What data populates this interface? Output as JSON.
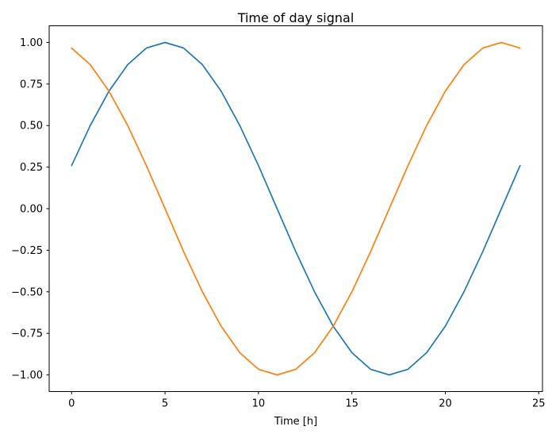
{
  "chart_data": {
    "type": "line",
    "title": "Time of day signal",
    "xlabel": "Time [h]",
    "ylabel": "",
    "x": [
      0,
      1,
      2,
      3,
      4,
      5,
      6,
      7,
      8,
      9,
      10,
      11,
      12,
      13,
      14,
      15,
      16,
      17,
      18,
      19,
      20,
      21,
      22,
      23,
      24
    ],
    "series": [
      {
        "color": "#1f77b4",
        "values": [
          0.259,
          0.5,
          0.707,
          0.866,
          0.966,
          1.0,
          0.966,
          0.866,
          0.707,
          0.5,
          0.259,
          0.0,
          -0.259,
          -0.5,
          -0.707,
          -0.866,
          -0.966,
          -1.0,
          -0.966,
          -0.866,
          -0.707,
          -0.5,
          -0.259,
          0.0,
          0.259
        ]
      },
      {
        "color": "#ff7f0e",
        "values": [
          0.966,
          0.866,
          0.707,
          0.5,
          0.259,
          0.0,
          -0.259,
          -0.5,
          -0.707,
          -0.866,
          -0.966,
          -1.0,
          -0.966,
          -0.866,
          -0.707,
          -0.5,
          -0.259,
          0.0,
          0.259,
          0.5,
          0.707,
          0.866,
          0.966,
          1.0,
          0.966
        ]
      }
    ],
    "xlim": [
      -1.2,
      25.2
    ],
    "ylim": [
      -1.1,
      1.1
    ],
    "xticks": [
      0,
      5,
      10,
      15,
      20,
      25
    ],
    "xtick_labels": [
      "0",
      "5",
      "10",
      "15",
      "20",
      "25"
    ],
    "yticks": [
      -1.0,
      -0.75,
      -0.5,
      -0.25,
      0.0,
      0.25,
      0.5,
      0.75,
      1.0
    ],
    "ytick_labels": [
      "−1.00",
      "−0.75",
      "−0.50",
      "−0.25",
      "0.00",
      "0.25",
      "0.50",
      "0.75",
      "1.00"
    ],
    "grid": false,
    "legend": "none",
    "line_width": 1.7,
    "colors": {
      "background": "#ffffff",
      "spine": "#000000",
      "text": "#000000"
    }
  }
}
